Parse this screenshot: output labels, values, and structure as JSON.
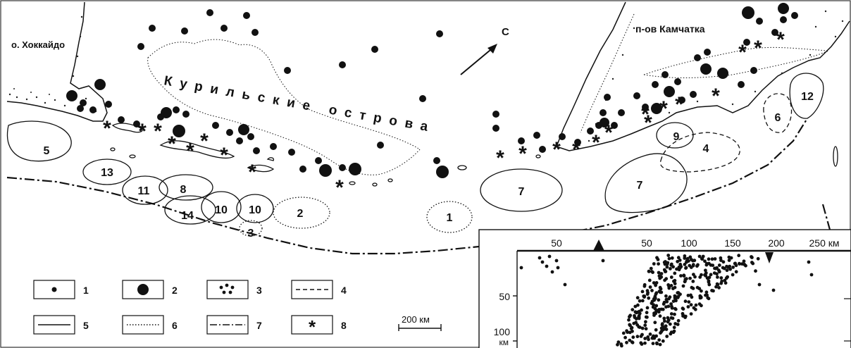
{
  "labels": {
    "hokkaido": "о. Хоккайдо",
    "kamchatka": "п-ов Камчатка",
    "kuril_islands": "Курильские острова",
    "north_arrow": "С"
  },
  "zones": [
    "1",
    "2",
    "3",
    "4",
    "5",
    "6",
    "7",
    "7",
    "8",
    "9",
    "10",
    "10",
    "11",
    "12",
    "13",
    "14"
  ],
  "legend": {
    "items": [
      {
        "symbol": "small-dot-icon",
        "label": "1"
      },
      {
        "symbol": "large-dot-icon",
        "label": "2"
      },
      {
        "symbol": "dot-cluster-icon",
        "label": "3"
      },
      {
        "symbol": "dashed-line-icon",
        "label": "4"
      },
      {
        "symbol": "solid-line-icon",
        "label": "5"
      },
      {
        "symbol": "dotted-line-icon",
        "label": "6"
      },
      {
        "symbol": "dash-dot-line-icon",
        "label": "7"
      },
      {
        "symbol": "asterisk-icon",
        "label": "8"
      }
    ]
  },
  "scale_bar": {
    "label": "200 км"
  },
  "inset": {
    "x_ticks": [
      "50",
      "50",
      "100",
      "150",
      "200",
      "250 км"
    ],
    "y_ticks": [
      "50",
      "100"
    ],
    "y_unit": "км",
    "markers": [
      "triangle-up-icon",
      "triangle-down-icon"
    ]
  }
}
